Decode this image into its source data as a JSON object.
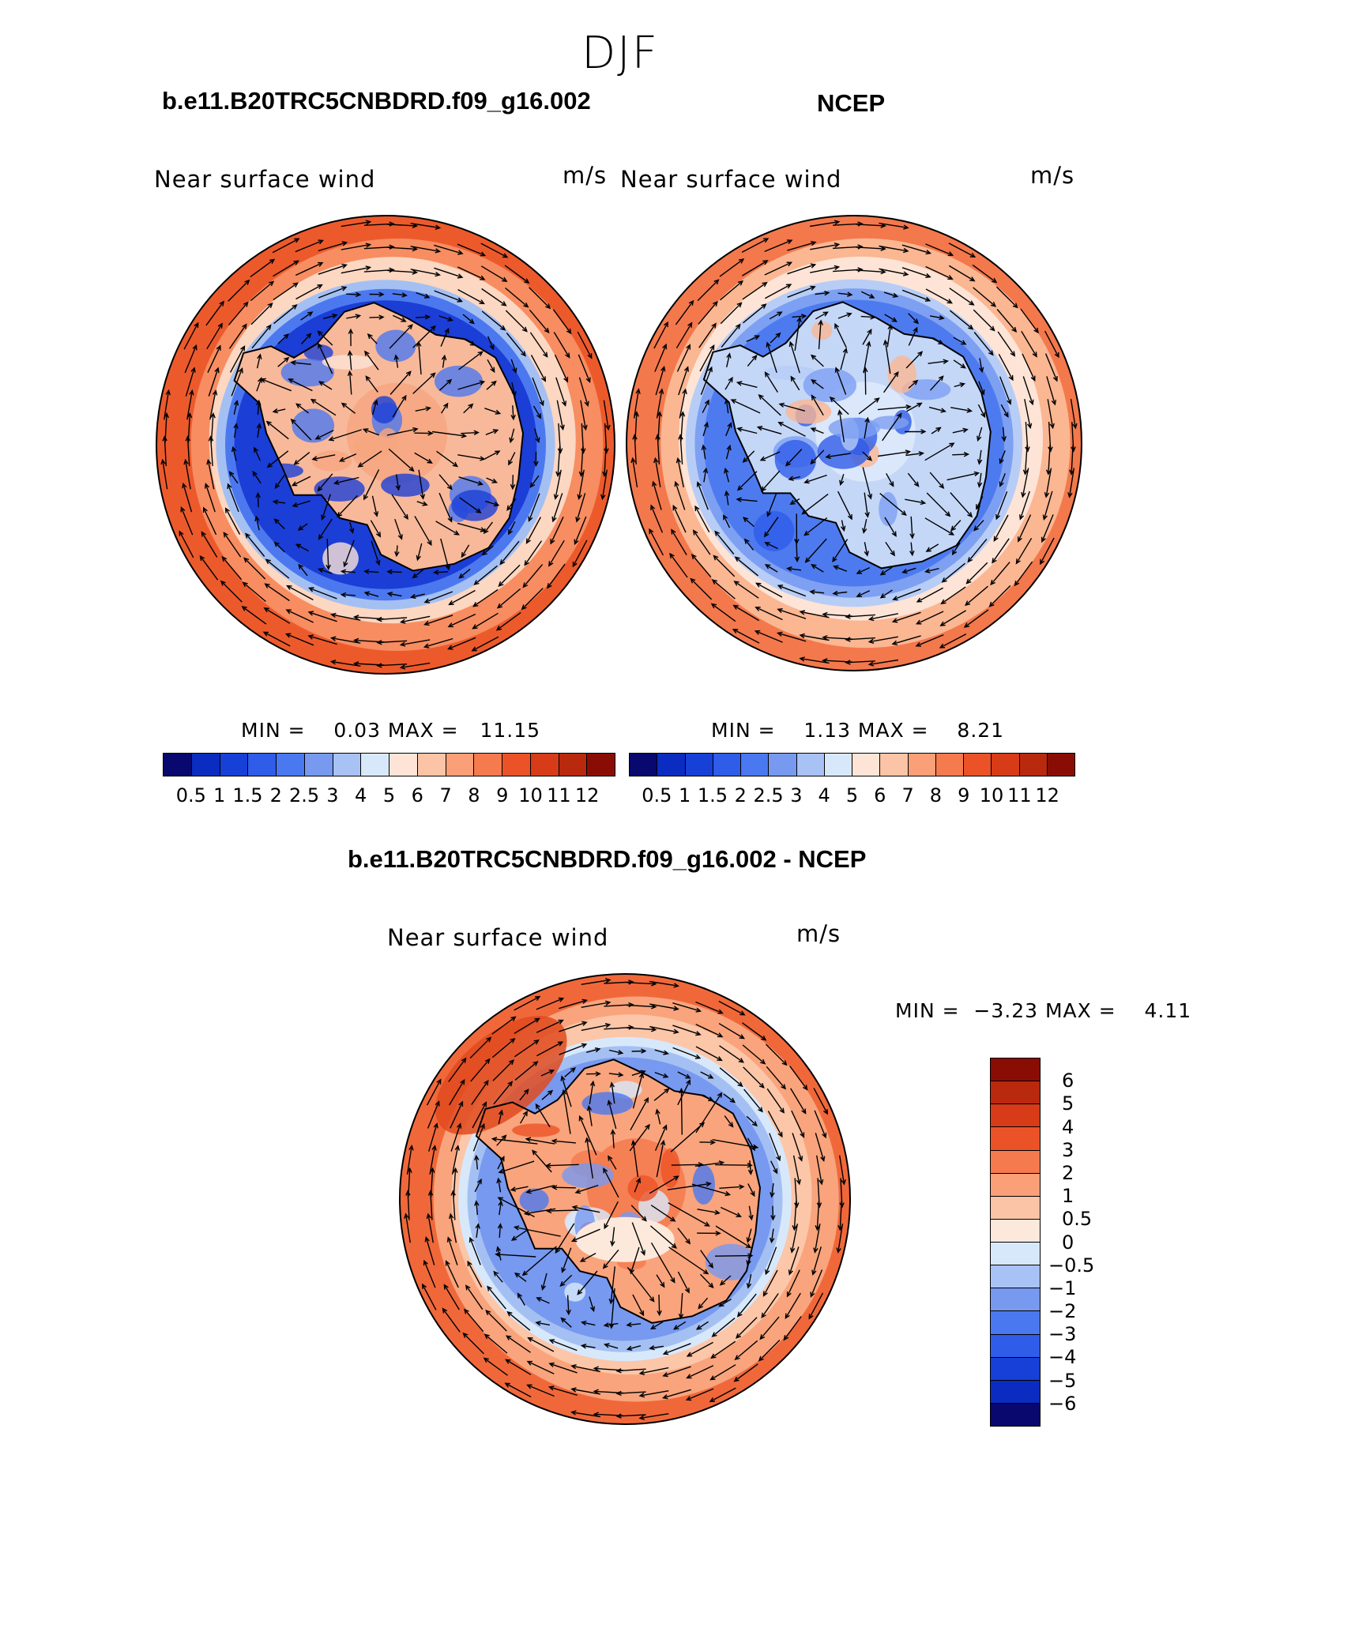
{
  "figure_title": "DJF",
  "panels": [
    {
      "case_title": "b.e11.B20TRC5CNBDRD.f09_g16.002",
      "variable": "Near surface wind",
      "units": "m/s",
      "min_max": "MIN =    0.03 MAX =   11.15",
      "colorbar": {
        "levels": [
          "0.5",
          "1",
          "1.5",
          "2",
          "2.5",
          "3",
          "4",
          "5",
          "6",
          "7",
          "8",
          "9",
          "10",
          "11",
          "12"
        ],
        "colors": [
          "#08086e",
          "#0a2cc0",
          "#1640d8",
          "#2f5ce8",
          "#4a78f0",
          "#7799f0",
          "#a9c2f5",
          "#d8e8fb",
          "#fde4d6",
          "#fcc4a6",
          "#fa9f77",
          "#f57a4e",
          "#ec5227",
          "#d73b17",
          "#b9290e",
          "#8a0d05"
        ]
      },
      "map_style": "model",
      "palette": {
        "pole": "#f6a680",
        "continent": "#f7b99a",
        "ring_dark": "#1b3ed6",
        "ring_mid": "#4c78ef",
        "ring_light": "#a4c0f3",
        "ocean_light": "#fcd7c2",
        "ocean_mid": "#f78d61",
        "ocean_outer": "#ec5a2c"
      }
    },
    {
      "case_title": "NCEP",
      "variable": "Near surface wind",
      "units": "m/s",
      "min_max": "MIN =    1.13 MAX =    8.21",
      "colorbar": {
        "levels": [
          "0.5",
          "1",
          "1.5",
          "2",
          "2.5",
          "3",
          "4",
          "5",
          "6",
          "7",
          "8",
          "9",
          "10",
          "11",
          "12"
        ],
        "colors": [
          "#08086e",
          "#0a2cc0",
          "#1640d8",
          "#2f5ce8",
          "#4a78f0",
          "#7799f0",
          "#a9c2f5",
          "#d8e8fb",
          "#fde4d6",
          "#fcc4a6",
          "#fa9f77",
          "#f57a4e",
          "#ec5227",
          "#d73b17",
          "#b9290e",
          "#8a0d05"
        ]
      },
      "map_style": "ncep",
      "palette": {
        "pole": "#dfeafb",
        "continent": "#c4d7f7",
        "ring_dark": "#4d7bef",
        "ring_mid": "#7ea0f2",
        "ring_light": "#b7cdf6",
        "ocean_light": "#fde4d6",
        "ocean_mid": "#fbb692",
        "ocean_outer": "#f3784c"
      }
    },
    {
      "case_title": "b.e11.B20TRC5CNBDRD.f09_g16.002 - NCEP",
      "variable": "Near surface wind",
      "units": "m/s",
      "min_max": "MIN =  −3.23 MAX =    4.11",
      "colorbar": {
        "levels": [
          "6",
          "5",
          "4",
          "3",
          "2",
          "1",
          "0.5",
          "0",
          "−0.5",
          "−1",
          "−2",
          "−3",
          "−4",
          "−5",
          "−6"
        ],
        "colors": [
          "#8a0d05",
          "#b9290e",
          "#d73b17",
          "#ec5227",
          "#f57a4e",
          "#fa9f77",
          "#fcc4a6",
          "#fde9dc",
          "#d8e8fb",
          "#a9c2f5",
          "#7799f0",
          "#4a78f0",
          "#2f5ce8",
          "#1640d8",
          "#0a2cc0",
          "#08086e"
        ]
      },
      "map_style": "diff",
      "palette": {
        "pole": "#f47a4d",
        "continent": "#f9a47c",
        "ring_dark": "#7799f0",
        "ring_mid": "#a4c0f3",
        "ring_light": "#d8e8fb",
        "ocean_light": "#fcc6a8",
        "ocean_mid": "#f9a47c",
        "ocean_outer": "#f0683a"
      }
    }
  ]
}
